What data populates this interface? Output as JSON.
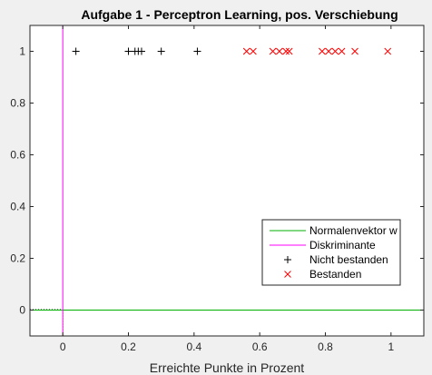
{
  "chart_data": {
    "type": "scatter",
    "title": "Aufgabe 1 - Perceptron Learning, pos. Verschiebung",
    "xlabel": "Erreichte Punkte in Prozent",
    "ylabel": "",
    "xlim": [
      -0.1,
      1.1
    ],
    "ylim": [
      -0.1,
      1.1
    ],
    "xticks": [
      0,
      0.2,
      0.4,
      0.6,
      0.8,
      1
    ],
    "xtick_labels": [
      "0",
      "0.2",
      "0.4",
      "0.6",
      "0.8",
      "1"
    ],
    "yticks": [
      0,
      0.2,
      0.4,
      0.6,
      0.8,
      1
    ],
    "ytick_labels": [
      "0",
      "0.2",
      "0.4",
      "0.6",
      "0.8",
      "1"
    ],
    "grid": false,
    "legend_position": "bottom-right",
    "series": [
      {
        "name": "Normalenvektor w",
        "kind": "line",
        "color": "#00b000",
        "x": [
          -0.1,
          1.1
        ],
        "y": [
          0,
          0
        ]
      },
      {
        "name": "Diskriminante",
        "kind": "line",
        "color": "#ff00ff",
        "x": [
          0,
          0
        ],
        "y": [
          -0.1,
          1.1
        ]
      },
      {
        "name": "Nicht bestanden",
        "kind": "marker",
        "marker": "plus",
        "color": "#000000",
        "x": [
          0.04,
          0.2,
          0.22,
          0.23,
          0.24,
          0.3,
          0.41
        ],
        "y": [
          1,
          1,
          1,
          1,
          1,
          1,
          1
        ]
      },
      {
        "name": "Bestanden",
        "kind": "marker",
        "marker": "x",
        "color": "#ff0000",
        "x": [
          0.56,
          0.58,
          0.64,
          0.66,
          0.68,
          0.69,
          0.79,
          0.81,
          0.83,
          0.85,
          0.89,
          0.99
        ],
        "y": [
          1,
          1,
          1,
          1,
          1,
          1,
          1,
          1,
          1,
          1,
          1,
          1
        ]
      }
    ],
    "reference_lines": [
      {
        "axis": "x",
        "value": 0,
        "style": "dotted",
        "color": "#000000"
      },
      {
        "axis": "y",
        "value": 0,
        "style": "dotted",
        "color": "#b8d400"
      }
    ]
  }
}
